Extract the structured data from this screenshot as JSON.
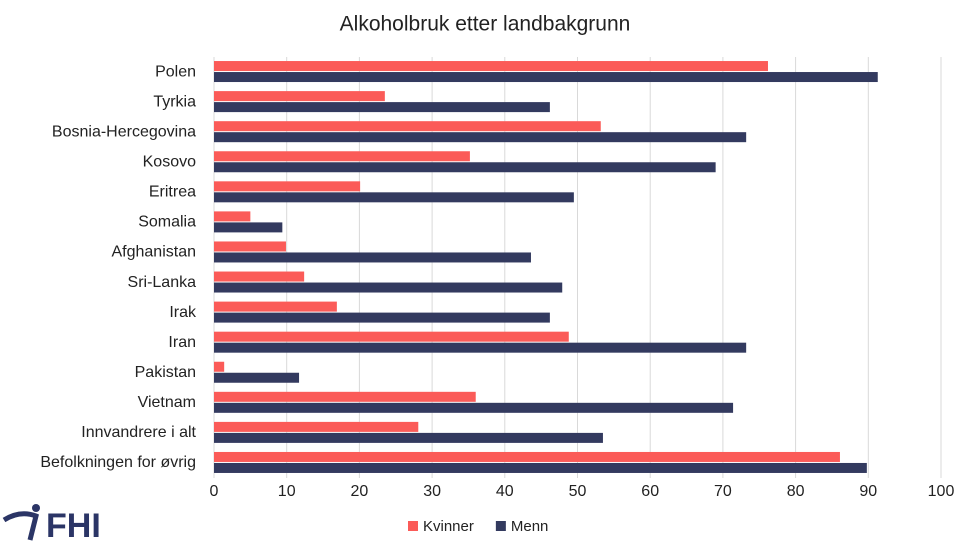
{
  "logo": "FHI",
  "chart_data": {
    "type": "barh",
    "title": "Alkoholbruk etter landbakgrunn",
    "categories": [
      "Polen",
      "Tyrkia",
      "Bosnia-Hercegovina",
      "Kosovo",
      "Eritrea",
      "Somalia",
      "Afghanistan",
      "Sri-Lanka",
      "Irak",
      "Iran",
      "Pakistan",
      "Vietnam",
      "Innvandrere i alt",
      "Befolkningen for øvrig"
    ],
    "series": [
      {
        "name": "Kvinner",
        "color": "#fb5b58",
        "values": [
          76.2,
          23.5,
          53.2,
          35.2,
          20.1,
          5,
          9.9,
          12.4,
          16.9,
          48.8,
          1.4,
          36,
          28.1,
          86.1
        ]
      },
      {
        "name": "Menn",
        "color": "#333a5f",
        "values": [
          91.3,
          46.2,
          73.2,
          69,
          49.5,
          9.4,
          43.6,
          47.9,
          46.2,
          73.2,
          11.7,
          71.4,
          53.5,
          89.8
        ]
      }
    ],
    "xlim": [
      0,
      100
    ],
    "xticks": [
      0,
      10,
      20,
      30,
      40,
      50,
      60,
      70,
      80,
      90,
      100
    ],
    "grid": true,
    "legend": "bottom"
  }
}
